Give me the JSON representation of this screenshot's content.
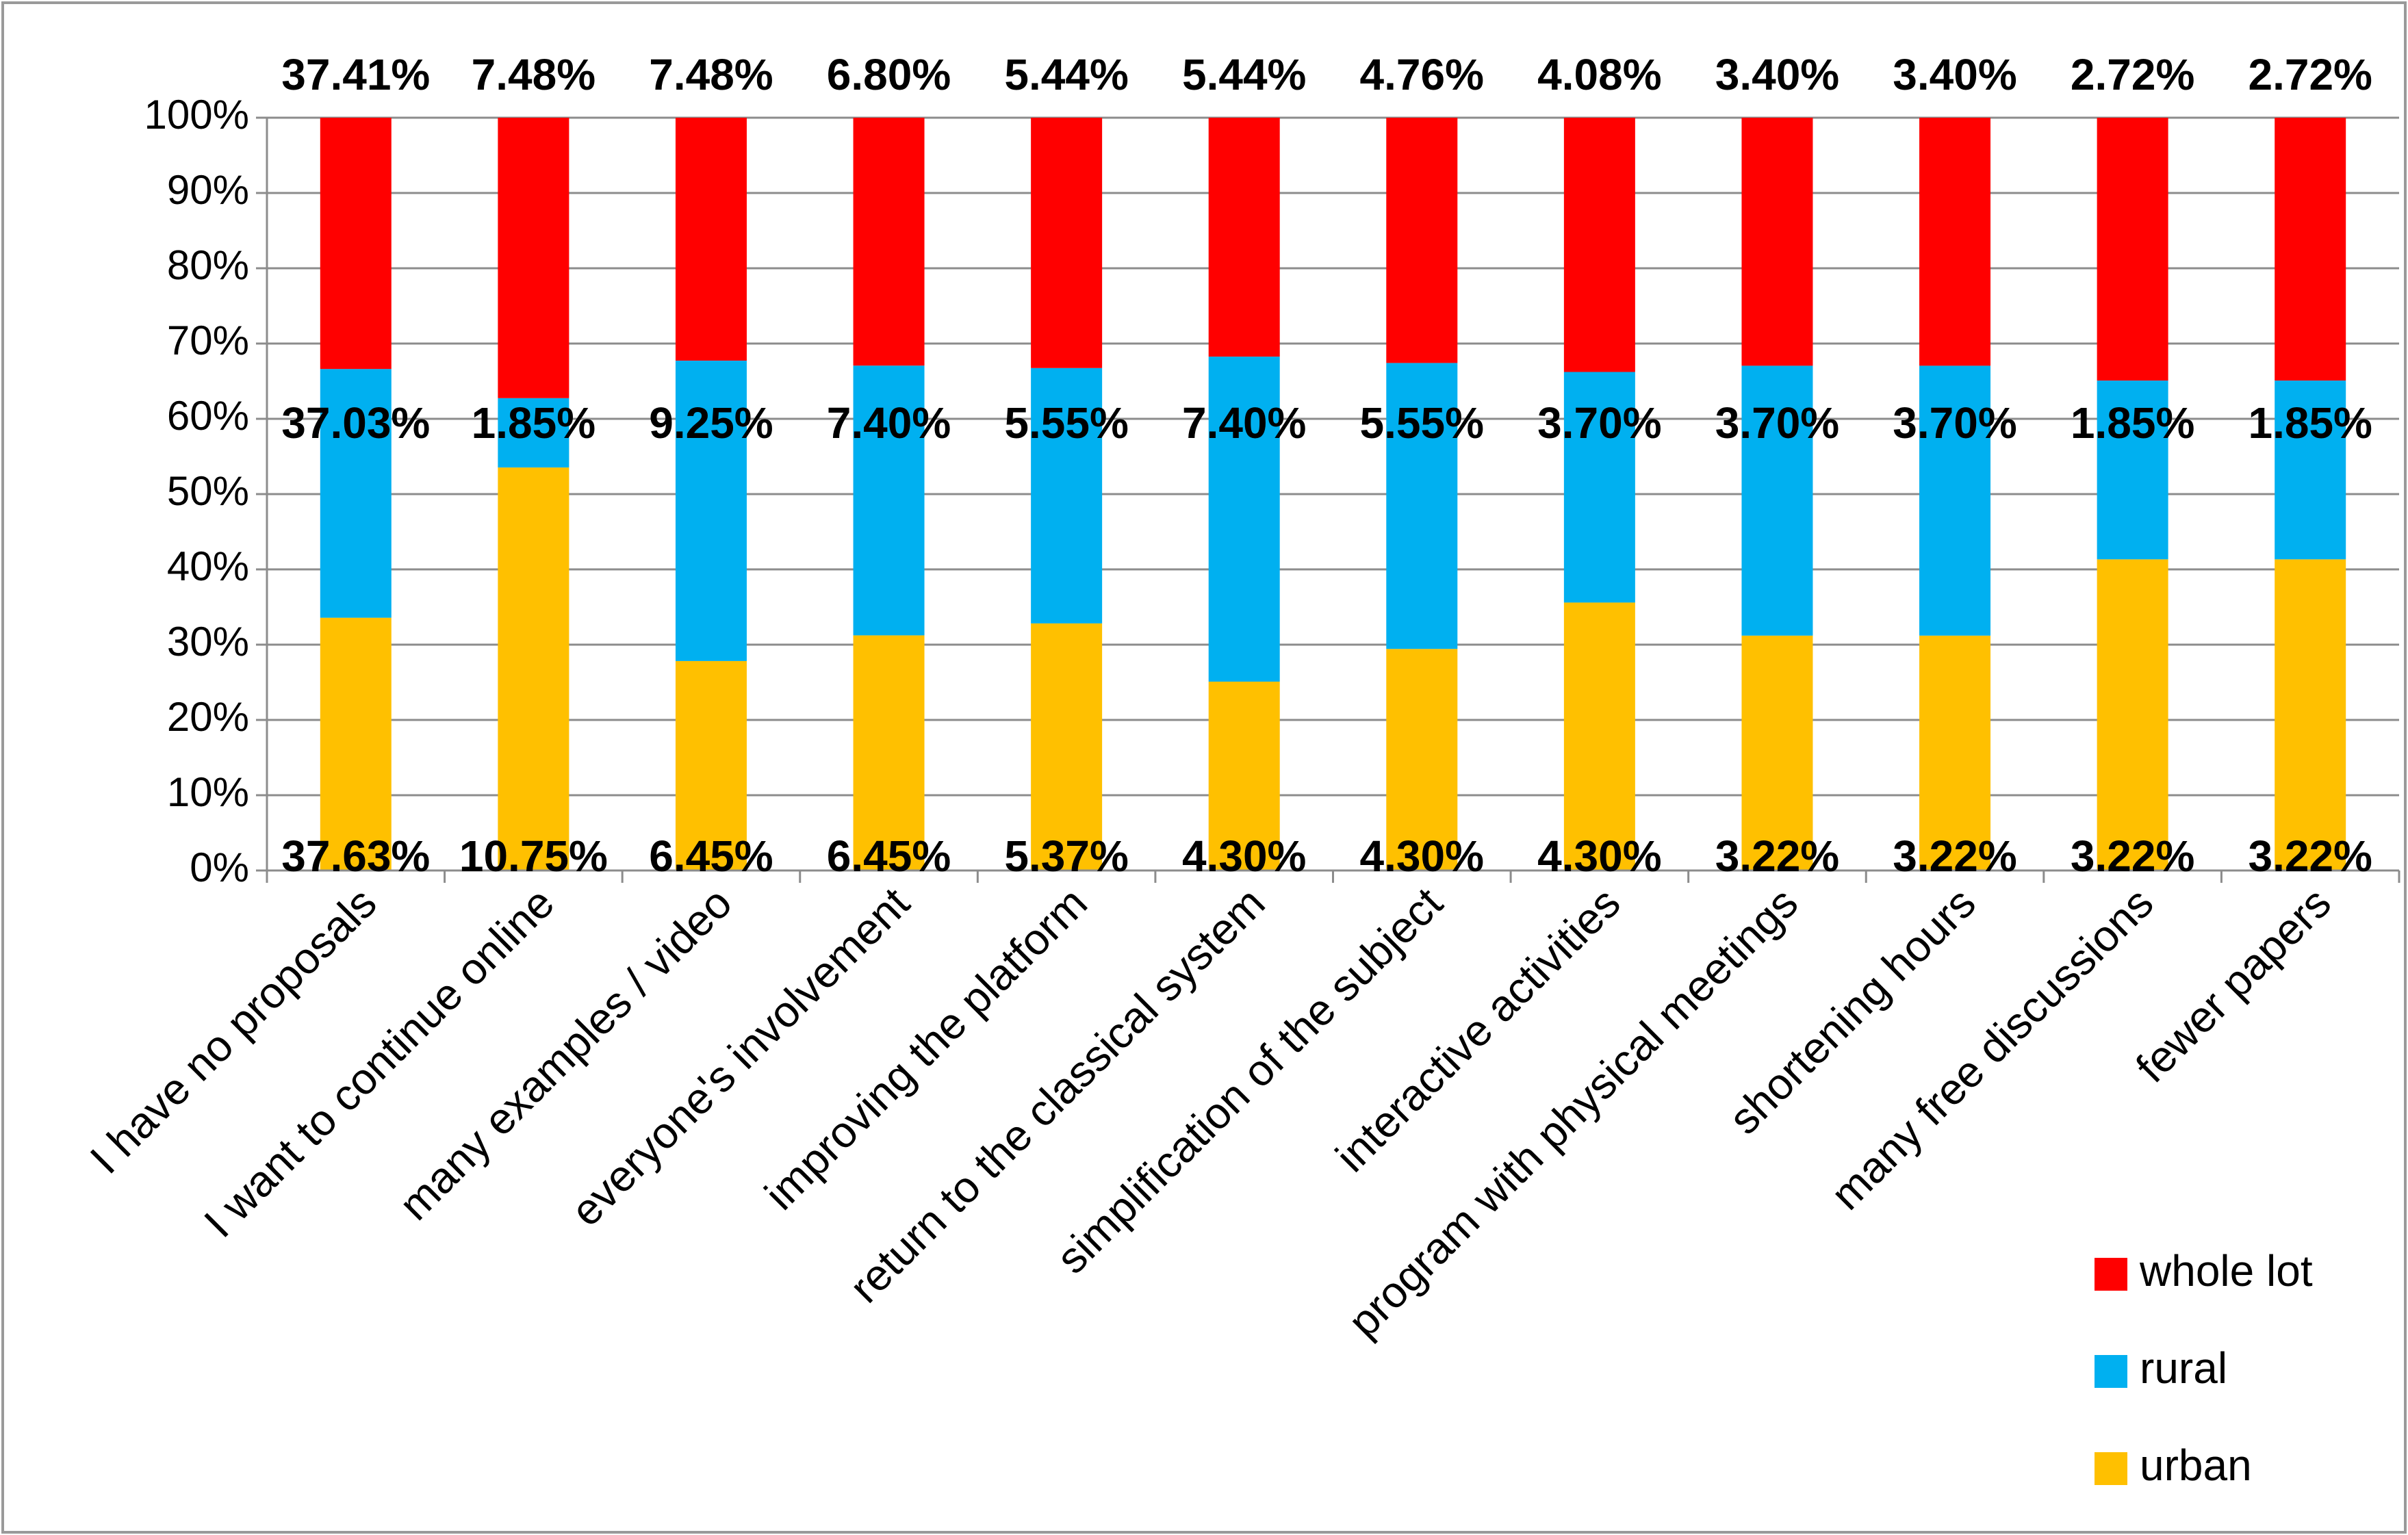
{
  "chart_data": {
    "type": "bar",
    "stacked": "percent",
    "title": "",
    "xlabel": "",
    "ylabel": "",
    "ylim": [
      0,
      100
    ],
    "y_ticks": [
      "0%",
      "10%",
      "20%",
      "30%",
      "40%",
      "50%",
      "60%",
      "70%",
      "80%",
      "90%",
      "100%"
    ],
    "grid": true,
    "legend_position": "bottom-right",
    "categories": [
      "I have no proposals",
      "I want to continue online",
      "many examples / video",
      "everyone's involvement",
      "improving the platform",
      "return to the classical system",
      "simplification of the subject",
      "interactive activities",
      "program with physical meetings",
      "shortening hours",
      "many free discussions",
      "fewer papers"
    ],
    "series": [
      {
        "name": "urban",
        "color": "#FFC000",
        "values": [
          37.63,
          10.75,
          6.45,
          6.45,
          5.37,
          4.3,
          4.3,
          4.3,
          3.22,
          3.22,
          3.22,
          3.22
        ],
        "labels": [
          "37.63%",
          "10.75%",
          "6.45%",
          "6.45%",
          "5.37%",
          "4.30%",
          "4.30%",
          "4.30%",
          "3.22%",
          "3.22%",
          "3.22%",
          "3.22%"
        ]
      },
      {
        "name": "rural",
        "color": "#00B0F0",
        "values": [
          37.03,
          1.85,
          9.25,
          7.4,
          5.55,
          7.4,
          5.55,
          3.7,
          3.7,
          3.7,
          1.85,
          1.85
        ],
        "labels": [
          "37.03%",
          "1.85%",
          "9.25%",
          "7.40%",
          "5.55%",
          "7.40%",
          "5.55%",
          "3.70%",
          "3.70%",
          "3.70%",
          "1.85%",
          "1.85%"
        ]
      },
      {
        "name": "whole lot",
        "color": "#FF0000",
        "values": [
          37.41,
          7.48,
          7.48,
          6.8,
          5.44,
          5.44,
          4.76,
          4.08,
          3.4,
          3.4,
          2.72,
          2.72
        ],
        "labels": [
          "37.41%",
          "7.48%",
          "7.48%",
          "6.80%",
          "5.44%",
          "5.44%",
          "4.76%",
          "4.08%",
          "3.40%",
          "3.40%",
          "2.72%",
          "2.72%"
        ]
      }
    ],
    "legend": [
      "whole lot",
      "rural",
      "urban"
    ]
  }
}
